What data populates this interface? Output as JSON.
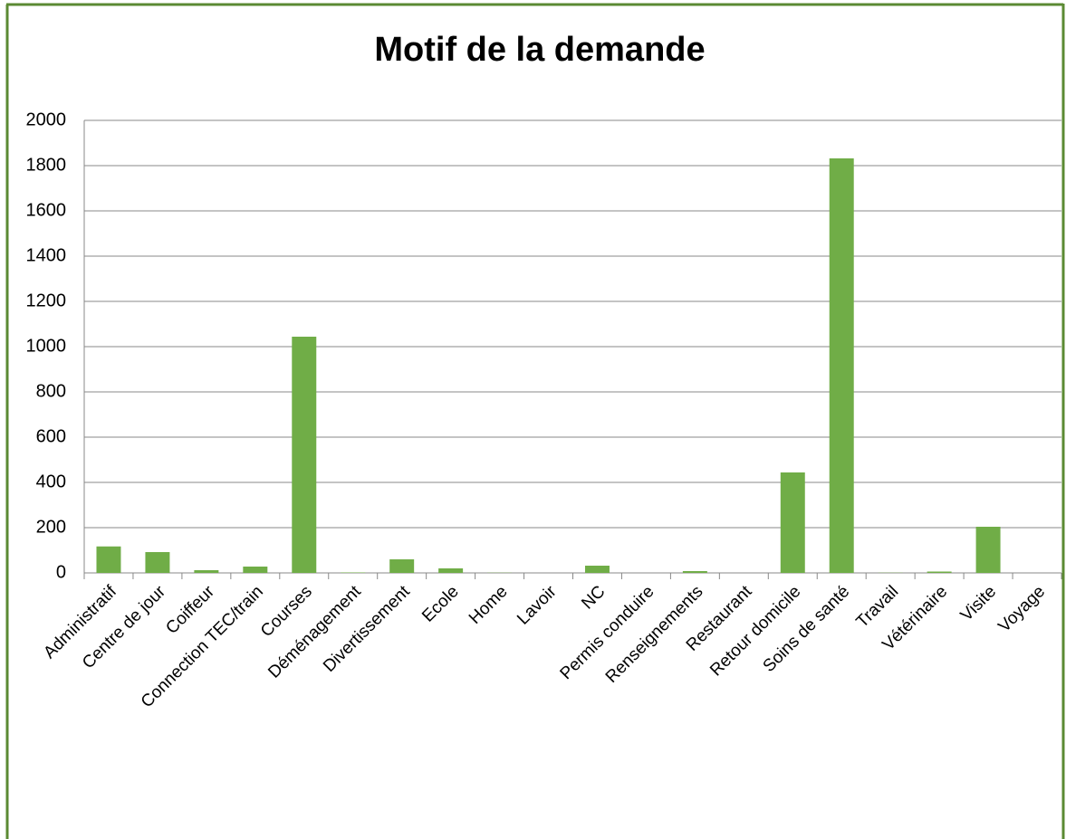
{
  "chart_data": {
    "type": "bar",
    "title": "Motif de la demande",
    "categories": [
      "Administratif",
      "Centre de jour",
      "Coiffeur",
      "Connection TEC/train",
      "Courses",
      "Déménagement",
      "Divertissement",
      "Ecole",
      "Home",
      "Lavoir",
      "NC",
      "Permis conduire",
      "Renseignements",
      "Restaurant",
      "Retour domicile",
      "Soins de santé",
      "Travail",
      "Vétérinaire",
      "Visite",
      "Voyage"
    ],
    "values": [
      117,
      92,
      12,
      28,
      1044,
      2,
      60,
      20,
      1,
      0,
      32,
      0,
      8,
      0,
      444,
      1832,
      1,
      6,
      204,
      0
    ],
    "color": "#70ad47",
    "ylim": [
      0,
      2000
    ],
    "yticks": [
      0,
      200,
      400,
      600,
      800,
      1000,
      1200,
      1400,
      1600,
      1800,
      2000
    ],
    "grid": true
  }
}
